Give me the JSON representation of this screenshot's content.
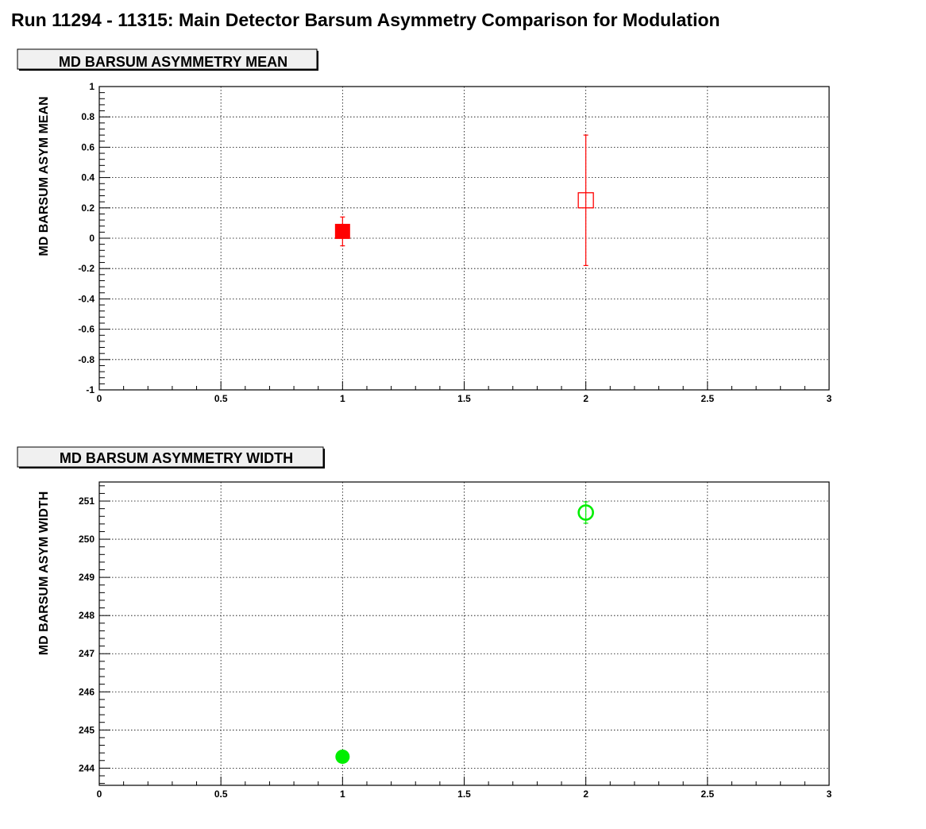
{
  "page": {
    "title": "Run 11294 - 11315: Main Detector Barsum Asymmetry Comparison for Modulation"
  },
  "chart_data": [
    {
      "type": "scatter",
      "title": "MD BARSUM ASYMMETRY MEAN",
      "xlabel": "",
      "ylabel": "MD BARSUM ASYM MEAN",
      "xlim": [
        0,
        3
      ],
      "ylim": [
        -1,
        1
      ],
      "x_ticks": [
        0,
        0.5,
        1,
        1.5,
        2,
        2.5,
        3
      ],
      "x_tick_labels": [
        "0",
        "0.5",
        "1",
        "1.5",
        "2",
        "2.5",
        "3"
      ],
      "y_ticks": [
        -1,
        -0.8,
        -0.6,
        -0.4,
        -0.2,
        0,
        0.2,
        0.4,
        0.6,
        0.8,
        1
      ],
      "y_tick_labels": [
        "-1",
        "-0.8",
        "-0.6",
        "-0.4",
        "-0.2",
        "0",
        "0.2",
        "0.4",
        "0.6",
        "0.8",
        "1"
      ],
      "grid": true,
      "points": [
        {
          "x": 1,
          "y": 0.045,
          "err": 0.095,
          "marker": "square-filled",
          "color": "#ff0000"
        },
        {
          "x": 2,
          "y": 0.25,
          "err": 0.43,
          "marker": "square-open",
          "color": "#ff0000"
        }
      ]
    },
    {
      "type": "scatter",
      "title": "MD BARSUM ASYMMETRY WIDTH",
      "xlabel": "",
      "ylabel": "MD BARSUM ASYM WIDTH",
      "xlim": [
        0,
        3
      ],
      "ylim": [
        243.55,
        251.5
      ],
      "x_ticks": [
        0,
        0.5,
        1,
        1.5,
        2,
        2.5,
        3
      ],
      "x_tick_labels": [
        "0",
        "0.5",
        "1",
        "1.5",
        "2",
        "2.5",
        "3"
      ],
      "y_ticks": [
        244,
        245,
        246,
        247,
        248,
        249,
        250,
        251
      ],
      "y_tick_labels": [
        "244",
        "245",
        "246",
        "247",
        "248",
        "249",
        "250",
        "251"
      ],
      "grid": true,
      "points": [
        {
          "x": 1,
          "y": 244.3,
          "err": 0.08,
          "marker": "circle-filled",
          "color": "#00ee00"
        },
        {
          "x": 2,
          "y": 250.7,
          "err": 0.28,
          "marker": "circle-open",
          "color": "#00ee00"
        }
      ]
    }
  ]
}
